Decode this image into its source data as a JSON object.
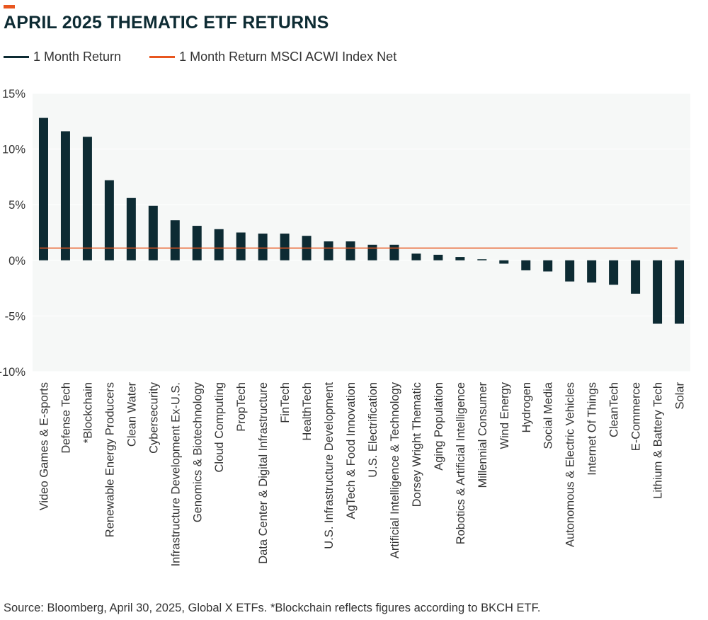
{
  "title": "APRIL 2025 THEMATIC ETF RETURNS",
  "accent_color": "#e8561f",
  "legend": [
    {
      "label": "1 Month Return",
      "color": "#0d2b33"
    },
    {
      "label": "1 Month Return MSCI ACWI Index Net",
      "color": "#e8561f"
    }
  ],
  "source": "Source: Bloomberg, April 30, 2025, Global X ETFs. *Blockchain reflects figures according to BKCH ETF.",
  "chart_data": {
    "type": "bar",
    "ylim": [
      -10,
      15
    ],
    "yticks": [
      15,
      10,
      5,
      0,
      -5,
      -10
    ],
    "ytick_labels": [
      "15%",
      "10%",
      "5%",
      "0%",
      "-5%",
      "-10%"
    ],
    "categories": [
      "Video Games & E-sports",
      "Defense Tech",
      "*Blockchain",
      "Renewable Energy Producers",
      "Clean Water",
      "Cybersecurity",
      "Infrastructure Development Ex-U.S.",
      "Genomics & Biotechnology",
      "Cloud Computing",
      "PropTech",
      "Data Center & Digital Infrastructure",
      "FinTech",
      "HealthTech",
      "U.S. Infrastructure Development",
      "AgTech & Food Innovation",
      "U.S. Electrification",
      "Artificial Intelligence & Technology",
      "Dorsey Wright Thematic",
      "Aging Population",
      "Robotics & Artificial Intelligence",
      "Millennial Consumer",
      "Wind Energy",
      "Hydrogen",
      "Social Media",
      "Autonomous & Electric Vehicles",
      "Internet Of Things",
      "CleanTech",
      "E-Commerce",
      "Lithium & Battery Tech",
      "Solar"
    ],
    "series": [
      {
        "name": "1 Month Return",
        "color": "#0d2b33",
        "values": [
          12.8,
          11.6,
          11.1,
          7.2,
          5.6,
          4.9,
          3.6,
          3.1,
          2.8,
          2.5,
          2.4,
          2.4,
          2.2,
          1.7,
          1.7,
          1.4,
          1.4,
          0.6,
          0.5,
          0.3,
          0.1,
          -0.3,
          -0.9,
          -1.0,
          -1.9,
          -2.0,
          -2.2,
          -3.0,
          -5.7,
          -5.7
        ]
      }
    ],
    "reference_line": {
      "name": "1 Month Return MSCI ACWI Index Net",
      "value": 1.1,
      "color": "#e8561f"
    },
    "grid": true,
    "legend_position": "top-left"
  }
}
